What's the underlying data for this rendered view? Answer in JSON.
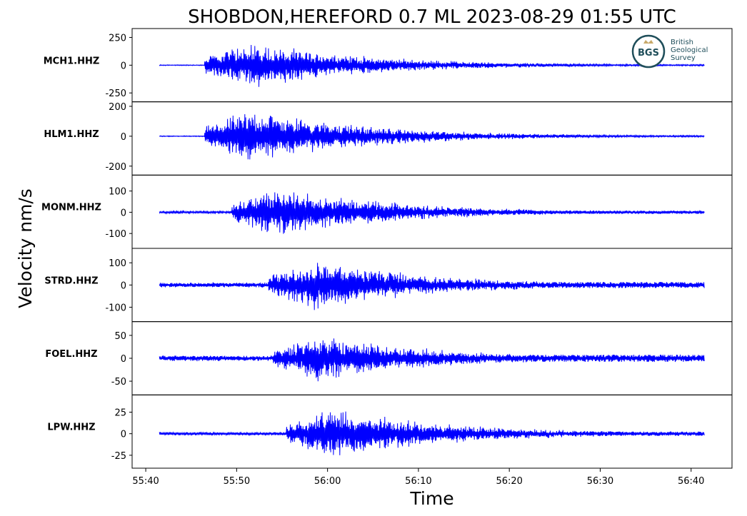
{
  "chart_data": {
    "type": "line",
    "title": "SHOBDON,HEREFORD 0.7 ML   2023-08-29 01:55 UTC",
    "xlabel": "Time",
    "ylabel": "Velocity nm/s",
    "x_range_seconds": [
      "55:41.5",
      "56:41.5"
    ],
    "xlim": [
      "55:38.5",
      "56:44.5"
    ],
    "x_ticks": [
      "55:40",
      "55:50",
      "56:00",
      "56:10",
      "56:20",
      "56:30",
      "56:40"
    ],
    "line_color": "#0000ff",
    "grid": false,
    "logo": {
      "abbrev": "BGS",
      "lines": [
        "British",
        "Geological",
        "Survey"
      ]
    },
    "series": [
      {
        "name": "MCH1.HHZ",
        "ylim": [
          -330,
          330
        ],
        "y_ticks": [
          "250",
          "0",
          "-250"
        ],
        "y_tick_values": [
          250,
          0,
          -250
        ],
        "onset": "55:46.5",
        "peak": 290,
        "min": -300,
        "noise": 6,
        "pre_noise": 4
      },
      {
        "name": "HLM1.HHZ",
        "ylim": [
          -260,
          230
        ],
        "y_ticks": [
          "200",
          "0",
          "-200"
        ],
        "y_tick_values": [
          200,
          0,
          -200
        ],
        "onset": "55:46.5",
        "peak": 200,
        "min": -260,
        "noise": 5,
        "pre_noise": 3
      },
      {
        "name": "MONM.HHZ",
        "ylim": [
          -170,
          175
        ],
        "y_ticks": [
          "100",
          "0",
          "-100"
        ],
        "y_tick_values": [
          100,
          0,
          -100
        ],
        "onset": "55:49.5",
        "peak": 160,
        "min": -170,
        "noise": 8,
        "pre_noise": 6
      },
      {
        "name": "STRD.HHZ",
        "ylim": [
          -165,
          165
        ],
        "y_ticks": [
          "100",
          "0",
          "-100"
        ],
        "y_tick_values": [
          100,
          0,
          -100
        ],
        "onset": "55:53.5",
        "peak": 155,
        "min": -160,
        "noise": 14,
        "pre_noise": 12
      },
      {
        "name": "FOEL.HHZ",
        "ylim": [
          -80,
          80
        ],
        "y_ticks": [
          "50",
          "0",
          "-50"
        ],
        "y_tick_values": [
          50,
          0,
          -50
        ],
        "onset": "55:54",
        "peak": 72,
        "min": -65,
        "noise": 8,
        "pre_noise": 7
      },
      {
        "name": "LPW.HHZ",
        "ylim": [
          -40,
          45
        ],
        "y_ticks": [
          "25",
          "0",
          "-25"
        ],
        "y_tick_values": [
          25,
          0,
          -25
        ],
        "onset": "55:55.5",
        "peak": 42,
        "min": -38,
        "noise": 2.5,
        "pre_noise": 2
      }
    ]
  }
}
